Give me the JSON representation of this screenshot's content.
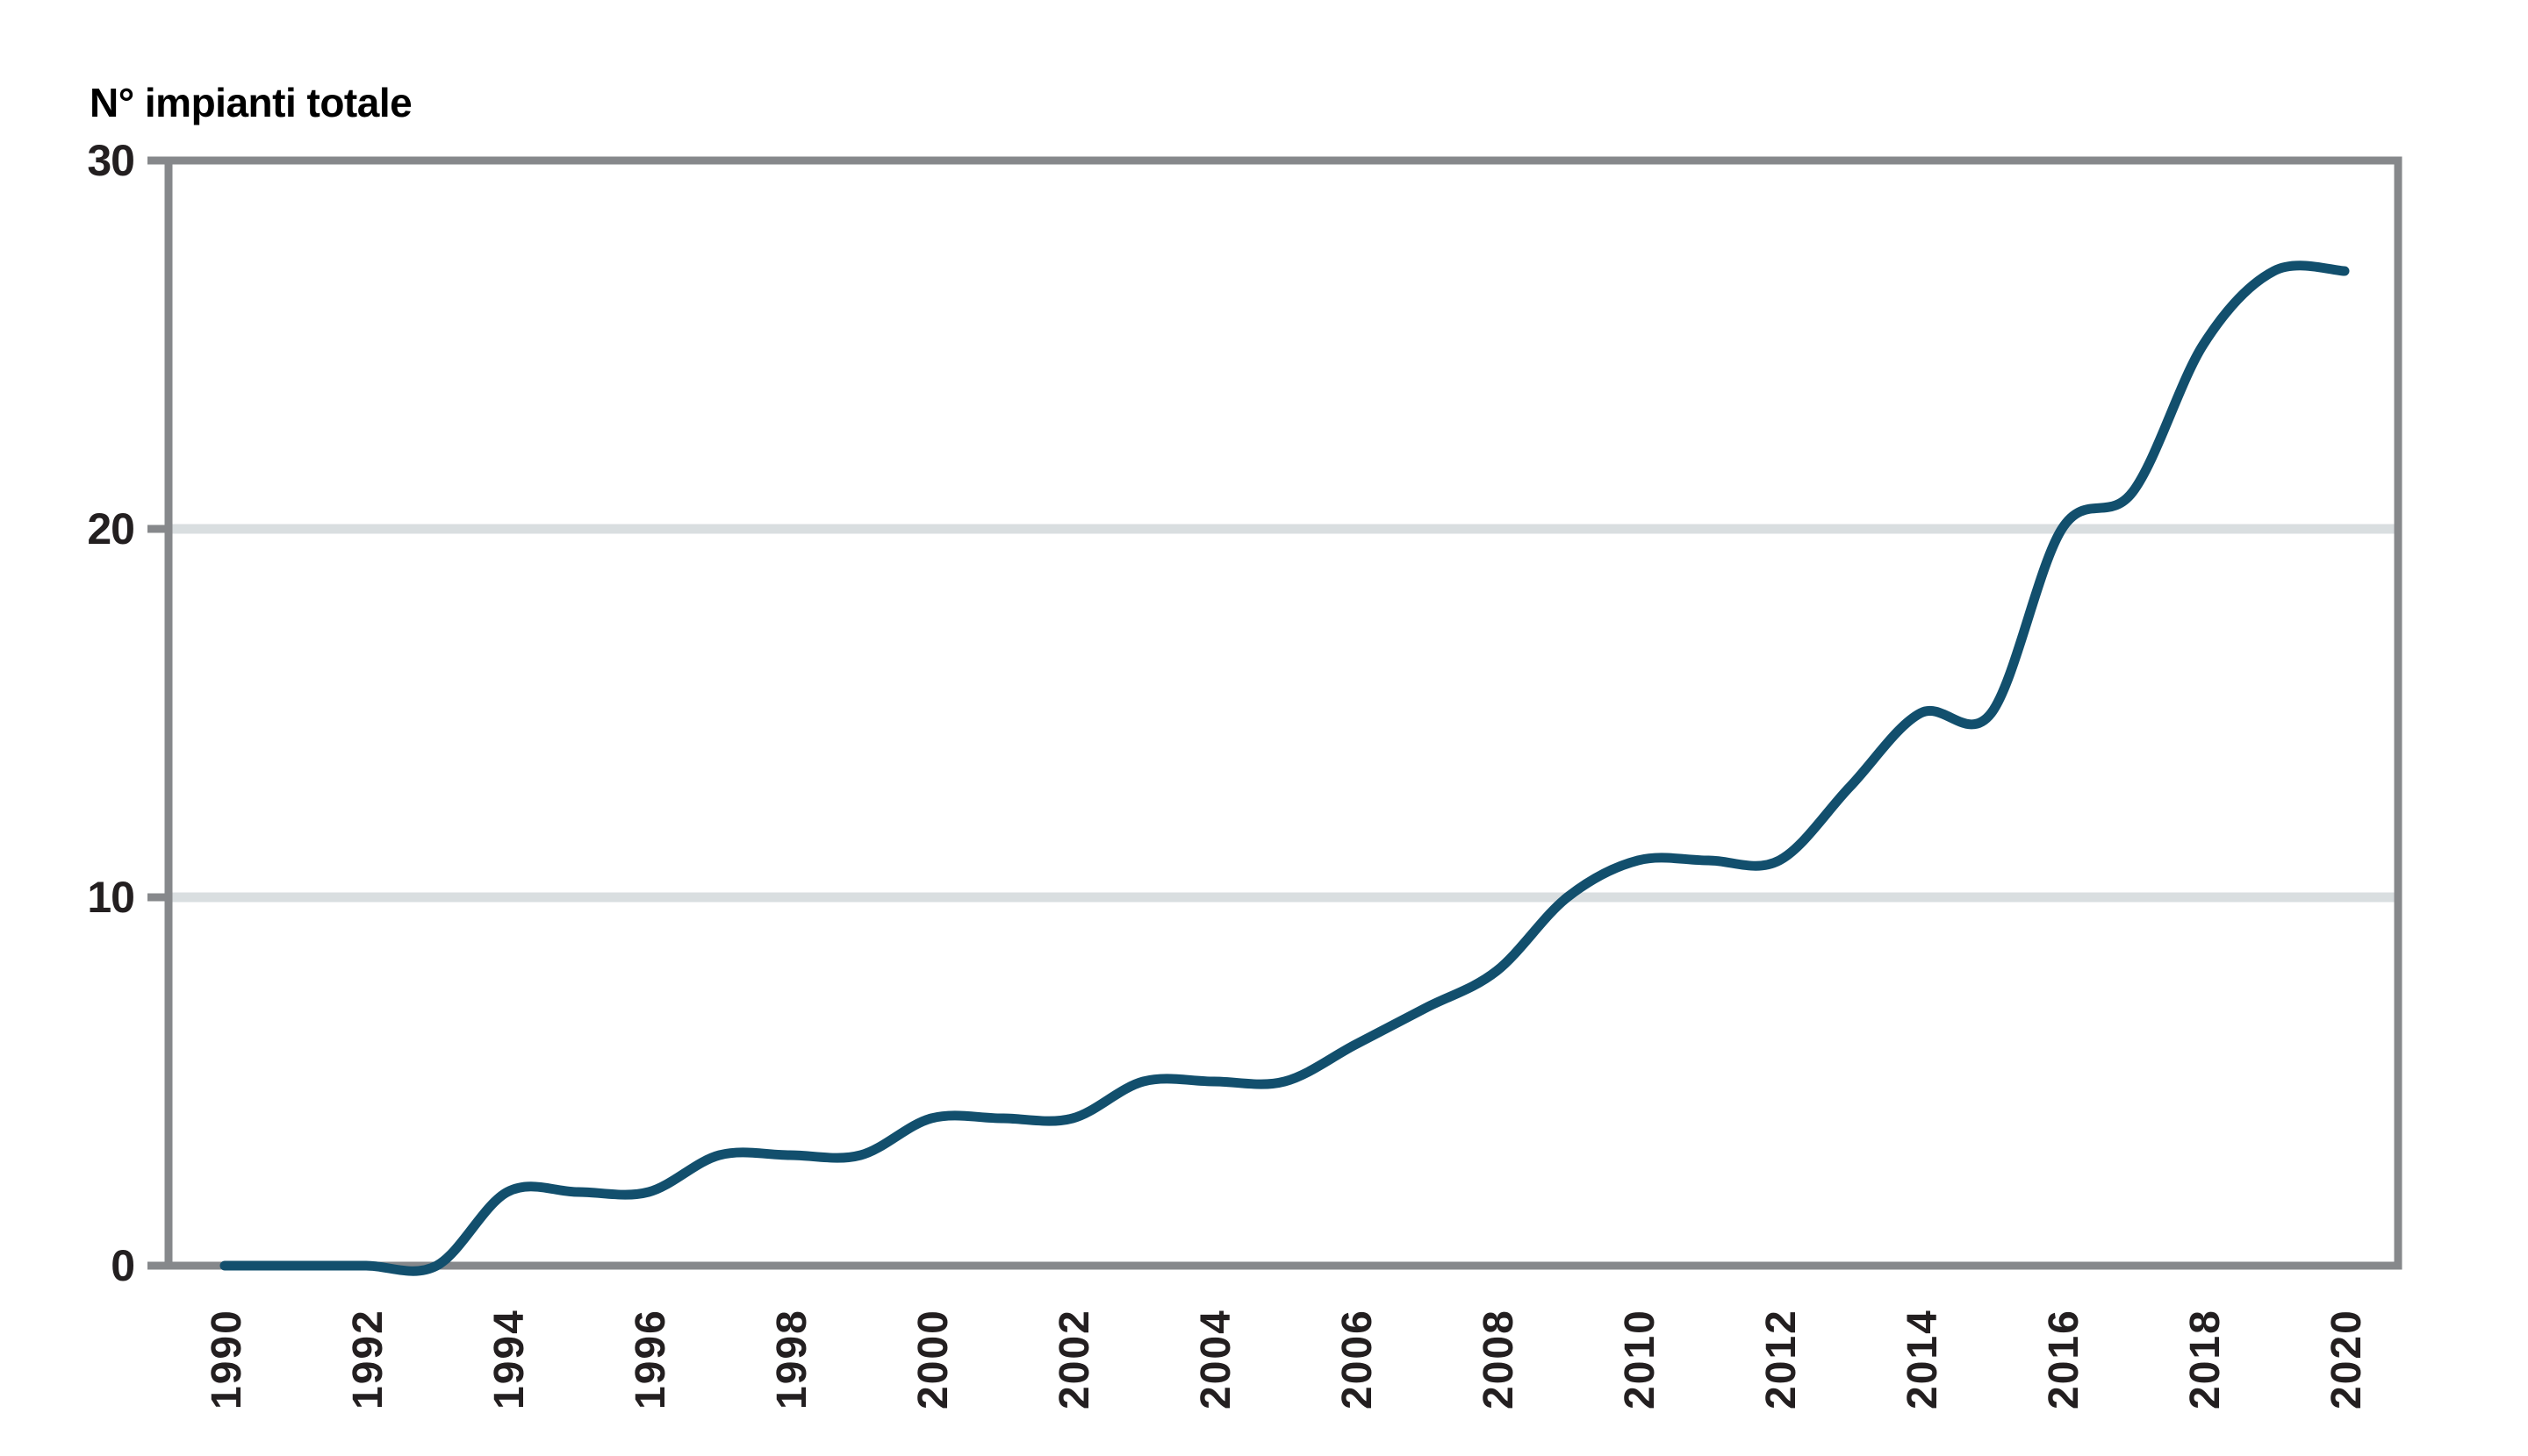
{
  "chart_data": {
    "type": "line",
    "title": "N° impianti totale",
    "series_name": "N° impianti totale",
    "smoothing": "spline",
    "legend": "none",
    "grid": "horizontal-only",
    "x": [
      1990,
      1991,
      1992,
      1993,
      1994,
      1995,
      1996,
      1997,
      1998,
      1999,
      2000,
      2001,
      2002,
      2003,
      2004,
      2005,
      2006,
      2007,
      2008,
      2009,
      2010,
      2011,
      2012,
      2013,
      2014,
      2015,
      2016,
      2017,
      2018,
      2019,
      2020
    ],
    "values": [
      0,
      0,
      0,
      0,
      2,
      2,
      2,
      3,
      3,
      3,
      4,
      4,
      4,
      5,
      5,
      5,
      6,
      7,
      8,
      10,
      11,
      11,
      11,
      13,
      15,
      15,
      20,
      21,
      25,
      27,
      27
    ],
    "xlim": [
      1990,
      2020
    ],
    "ylim": [
      0,
      30
    ],
    "y_ticks": [
      0,
      10,
      20,
      30
    ],
    "x_tick_labels": [
      1990,
      1992,
      1994,
      1996,
      1998,
      2000,
      2002,
      2004,
      2006,
      2008,
      2010,
      2012,
      2014,
      2016,
      2018,
      2020
    ],
    "gridlines_y": [
      10,
      20
    ],
    "xlabel": "",
    "ylabel": "N° impianti totale"
  },
  "colors": {
    "line": "#124f6d",
    "grid": "#d9dee0",
    "axis": "#86888b",
    "text": "#231f20",
    "background": "#ffffff"
  }
}
